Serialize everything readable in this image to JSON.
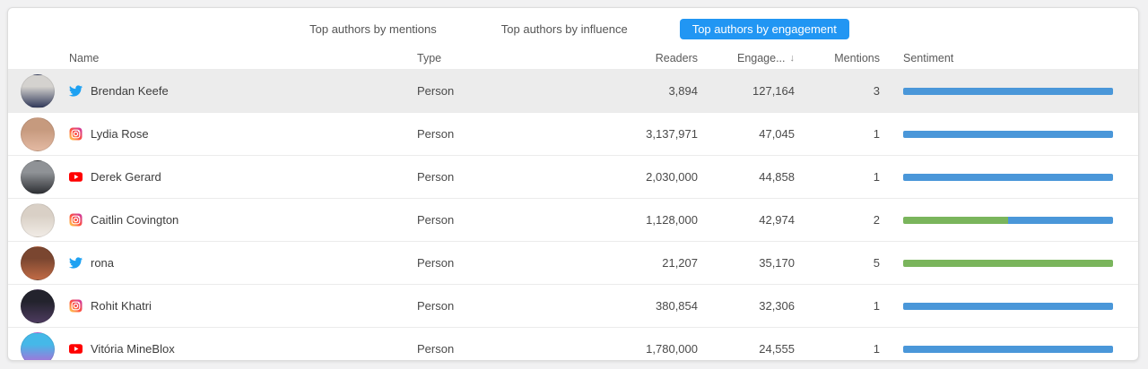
{
  "tabs": [
    {
      "label": "Top authors by mentions",
      "active": false
    },
    {
      "label": "Top authors by influence",
      "active": false
    },
    {
      "label": "Top authors by engagement",
      "active": true
    }
  ],
  "columns": {
    "name": "Name",
    "type": "Type",
    "readers": "Readers",
    "engagement": "Engage...",
    "sort_icon": "↓",
    "mentions": "Mentions",
    "sentiment": "Sentiment"
  },
  "colors": {
    "active_tab": "#2196f3",
    "bar_blue": "#4a97d9",
    "bar_green": "#7ab55c",
    "row_highlight": "#ececec",
    "twitter": "#1da1f2",
    "youtube": "#ff0000"
  },
  "rows": [
    {
      "name": "Brendan Keefe",
      "network": "twitter",
      "type": "Person",
      "readers": "3,894",
      "engagement": "127,164",
      "mentions": "3",
      "sentiment": [
        {
          "color": "blue",
          "pct": 100
        }
      ],
      "highlighted": true,
      "avatar_colors": [
        "#d4d2cf",
        "#31395a"
      ]
    },
    {
      "name": "Lydia Rose",
      "network": "instagram",
      "type": "Person",
      "readers": "3,137,971",
      "engagement": "47,045",
      "mentions": "1",
      "sentiment": [
        {
          "color": "blue",
          "pct": 100
        }
      ],
      "highlighted": false,
      "avatar_colors": [
        "#c69a7e",
        "#e3b9a2"
      ]
    },
    {
      "name": "Derek Gerard",
      "network": "youtube",
      "type": "Person",
      "readers": "2,030,000",
      "engagement": "44,858",
      "mentions": "1",
      "sentiment": [
        {
          "color": "blue",
          "pct": 100
        }
      ],
      "highlighted": false,
      "avatar_colors": [
        "#8f9296",
        "#2e3034"
      ]
    },
    {
      "name": "Caitlin Covington",
      "network": "instagram",
      "type": "Person",
      "readers": "1,128,000",
      "engagement": "42,974",
      "mentions": "2",
      "sentiment": [
        {
          "color": "green",
          "pct": 50
        },
        {
          "color": "blue",
          "pct": 50
        }
      ],
      "highlighted": false,
      "avatar_colors": [
        "#d9d0c6",
        "#f0ebe5"
      ]
    },
    {
      "name": "rona",
      "network": "twitter",
      "type": "Person",
      "readers": "21,207",
      "engagement": "35,170",
      "mentions": "5",
      "sentiment": [
        {
          "color": "green",
          "pct": 100
        }
      ],
      "highlighted": false,
      "avatar_colors": [
        "#7a4630",
        "#c06a45"
      ]
    },
    {
      "name": "Rohit Khatri",
      "network": "instagram",
      "type": "Person",
      "readers": "380,854",
      "engagement": "32,306",
      "mentions": "1",
      "sentiment": [
        {
          "color": "blue",
          "pct": 100
        }
      ],
      "highlighted": false,
      "avatar_colors": [
        "#23232d",
        "#4c3a5e"
      ]
    },
    {
      "name": "Vitória MineBlox",
      "network": "youtube",
      "type": "Person",
      "readers": "1,780,000",
      "engagement": "24,555",
      "mentions": "1",
      "sentiment": [
        {
          "color": "blue",
          "pct": 100
        }
      ],
      "highlighted": false,
      "avatar_colors": [
        "#45b8e8",
        "#b765d6"
      ]
    }
  ]
}
